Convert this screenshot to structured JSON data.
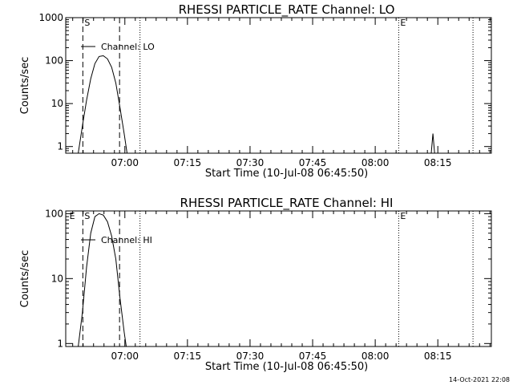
{
  "footer": {
    "timestamp": "14-Oct-2021 22:08"
  },
  "chart_data": [
    {
      "type": "line",
      "title": "RHESSI PARTICLE_RATE Channel: LO",
      "xlabel": "Start Time (10-Jul-08 06:45:50)",
      "ylabel": "Counts/sec",
      "yscale": "log",
      "xunits": "minutes since 06:45:50",
      "xlim": [
        0,
        102
      ],
      "ylim": [
        0.7,
        1000
      ],
      "yticks": [
        1,
        10,
        100,
        1000
      ],
      "ytick_labels": [
        "1",
        "10",
        "100",
        "1000"
      ],
      "xticks": [
        14.17,
        29.17,
        44.17,
        59.17,
        74.17,
        89.17
      ],
      "xtick_labels": [
        "07:00",
        "07:15",
        "07:30",
        "07:45",
        "08:00",
        "08:15"
      ],
      "grid": false,
      "legend_position": "top-left",
      "series": [
        {
          "name": "Channel: LO",
          "x": [
            3.0,
            4.0,
            5.0,
            6.0,
            7.0,
            8.0,
            9.0,
            10.0,
            11.0,
            12.0,
            13.0,
            14.0,
            14.7
          ],
          "y": [
            0.7,
            3.0,
            12.0,
            38.0,
            85.0,
            125.0,
            130.0,
            110.0,
            70.0,
            30.0,
            8.0,
            2.0,
            0.7
          ]
        },
        {
          "name": "",
          "x": [
            87.6,
            88.0,
            88.4
          ],
          "y": [
            0.7,
            2.0,
            0.7
          ]
        }
      ],
      "markers": [
        {
          "label": "S",
          "x": 4.1,
          "style": "dashed"
        },
        {
          "label": "",
          "x": 12.9,
          "style": "dashed"
        },
        {
          "label": "",
          "x": 17.8,
          "style": "dotted"
        },
        {
          "label": "E",
          "x": 79.8,
          "style": "dotted"
        },
        {
          "label": "",
          "x": 97.6,
          "style": "dotted"
        }
      ]
    },
    {
      "type": "line",
      "title": "RHESSI PARTICLE_RATE Channel: HI",
      "xlabel": "Start Time (10-Jul-08 06:45:50)",
      "ylabel": "Counts/sec",
      "yscale": "log",
      "xunits": "minutes since 06:45:50",
      "xlim": [
        0,
        102
      ],
      "ylim": [
        0.9,
        110
      ],
      "yticks": [
        1,
        10,
        100
      ],
      "ytick_labels": [
        "1",
        "10",
        "100"
      ],
      "xticks": [
        14.17,
        29.17,
        44.17,
        59.17,
        74.17,
        89.17
      ],
      "xtick_labels": [
        "07:00",
        "07:15",
        "07:30",
        "07:45",
        "08:00",
        "08:15"
      ],
      "grid": false,
      "legend_position": "top-left",
      "series": [
        {
          "name": "Channel: HI",
          "x": [
            3.0,
            4.0,
            5.0,
            6.0,
            7.0,
            8.0,
            9.0,
            10.0,
            11.0,
            12.0,
            13.0,
            14.0,
            14.5
          ],
          "y": [
            0.9,
            3.0,
            15.0,
            50.0,
            90.0,
            100.0,
            95.0,
            75.0,
            45.0,
            20.0,
            5.0,
            1.5,
            0.9
          ]
        }
      ],
      "markers": [
        {
          "label": "E",
          "x": 0.5,
          "style": "none"
        },
        {
          "label": "S",
          "x": 4.1,
          "style": "dashed"
        },
        {
          "label": "",
          "x": 12.9,
          "style": "dashed"
        },
        {
          "label": "",
          "x": 17.8,
          "style": "dotted"
        },
        {
          "label": "E",
          "x": 79.8,
          "style": "dotted"
        },
        {
          "label": "",
          "x": 97.6,
          "style": "dotted"
        }
      ]
    }
  ]
}
